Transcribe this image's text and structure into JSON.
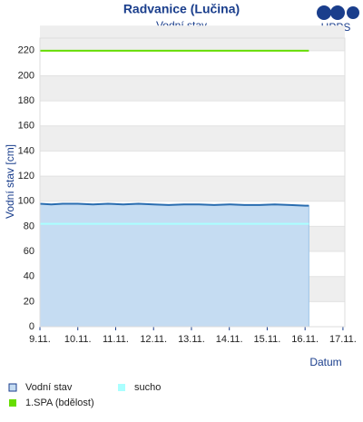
{
  "logo": "HPPS",
  "chart_data": {
    "type": "line",
    "title": "Radvanice (Lučina)",
    "subtitle": "Vodní stav",
    "y_label": "Vodní stav [cm]",
    "x_label": "Datum",
    "xlim": [
      9,
      17.05
    ],
    "ylim": [
      0,
      230
    ],
    "xticks": [
      {
        "value": 9,
        "label": "9.11."
      },
      {
        "value": 10,
        "label": "10.11."
      },
      {
        "value": 11,
        "label": "11.11."
      },
      {
        "value": 12,
        "label": "12.11."
      },
      {
        "value": 13,
        "label": "13.11."
      },
      {
        "value": 14,
        "label": "14.11."
      },
      {
        "value": 15,
        "label": "15.11."
      },
      {
        "value": 16,
        "label": "16.11."
      },
      {
        "value": 17,
        "label": "17.11."
      }
    ],
    "yticks": [
      0,
      20,
      40,
      60,
      80,
      100,
      120,
      140,
      160,
      180,
      200,
      220
    ],
    "grid": true,
    "series": [
      {
        "name": "Vodní stav",
        "color": "#2a6db0",
        "fill": "#c5dcf2",
        "area": true,
        "x": [
          9,
          9.3,
          9.6,
          10,
          10.4,
          10.8,
          11.2,
          11.6,
          12,
          12.4,
          12.8,
          13.2,
          13.6,
          14,
          14.4,
          14.8,
          15.2,
          15.6,
          16,
          16.1
        ],
        "values": [
          98,
          97.5,
          98,
          98,
          97.5,
          98,
          97.5,
          98,
          97.5,
          97,
          97.5,
          97.5,
          97,
          97.5,
          97,
          97,
          97.5,
          97,
          96.5,
          96.5
        ]
      },
      {
        "name": "sucho",
        "color": "#aaffff",
        "x": [
          9,
          16.1
        ],
        "values": [
          82,
          82
        ]
      },
      {
        "name": "1.SPA (bdělost)",
        "color": "#66dd00",
        "x": [
          9,
          16.1
        ],
        "values": [
          220,
          220
        ]
      }
    ]
  }
}
